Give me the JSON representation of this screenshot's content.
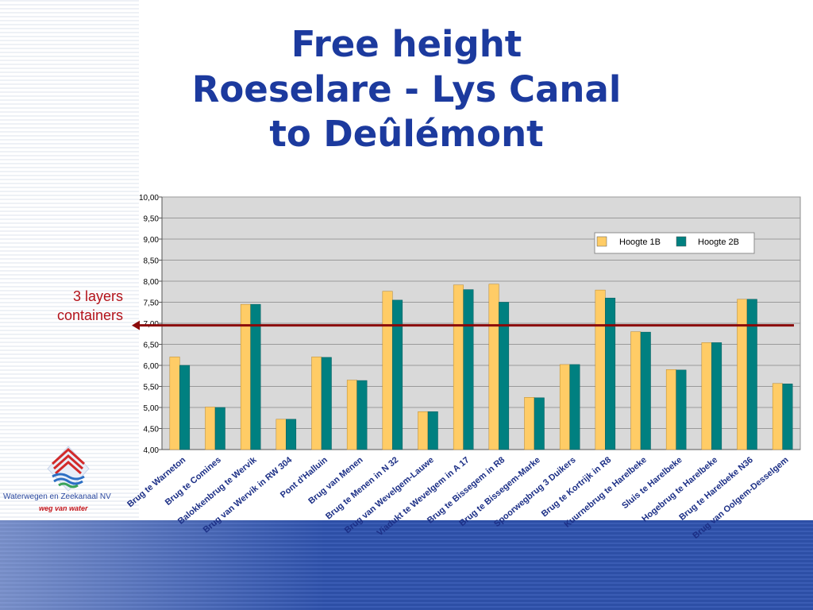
{
  "slide": {
    "title_line1": "Free height",
    "title_line2": "Roeselare - Lys Canal",
    "title_line3": "to Deûlémont",
    "annotation_line1": "3 layers",
    "annotation_line2": "containers"
  },
  "logo": {
    "name": "Waterwegen en Zeekanaal NV",
    "tagline": "weg van water"
  },
  "colors": {
    "title": "#1c3a9e",
    "series_1b": "#ffcc66",
    "series_2b": "#008080",
    "reference_line": "#8b0a0a",
    "plot_bg": "#d9d9d9"
  },
  "chart_data": {
    "type": "bar",
    "title": "",
    "xlabel": "",
    "ylabel": "",
    "ylim": [
      4.0,
      10.0
    ],
    "yticks": [
      "4,00",
      "4,50",
      "5,00",
      "5,50",
      "6,00",
      "6,50",
      "7,00",
      "7,50",
      "8,00",
      "8,50",
      "9,00",
      "9,50",
      "10,00"
    ],
    "grid": true,
    "legend_position": "top-right",
    "categories": [
      "Brug te Warneton",
      "Brug te Comines",
      "Balokkenbrug te Wervik",
      "Brug van Wervik in RW 304",
      "Pont d'Halluin",
      "Brug van Menen",
      "Brug te Menen in N 32",
      "Brug van Wevelgem-Lauwe",
      "Viadukt te Wevelgem in A 17",
      "Brug te Bissegem in R8",
      "Brug te Bissegem-Marke",
      "Spoorwegbrug 3 Duikers",
      "Brug te Kortrijk in R8",
      "Kuurnebrug te Harelbeke",
      "Sluis te Harelbeke",
      "Hogebrug te Harelbeke",
      "Brug te Harelbeke N36",
      "Brug van Oolgem-Desselgem"
    ],
    "series": [
      {
        "name": "Hoogte 1B",
        "values": [
          6.2,
          5.01,
          7.45,
          4.72,
          6.2,
          5.65,
          7.76,
          4.9,
          7.91,
          7.93,
          5.24,
          6.02,
          7.79,
          6.8,
          5.9,
          6.54,
          7.57,
          5.57
        ]
      },
      {
        "name": "Hoogte 2B",
        "values": [
          6.0,
          5.0,
          7.45,
          4.72,
          6.19,
          5.64,
          7.55,
          4.9,
          7.8,
          7.5,
          5.23,
          6.02,
          7.6,
          6.79,
          5.89,
          6.54,
          7.57,
          5.56
        ]
      }
    ],
    "reference_line": {
      "y": 6.95
    }
  }
}
